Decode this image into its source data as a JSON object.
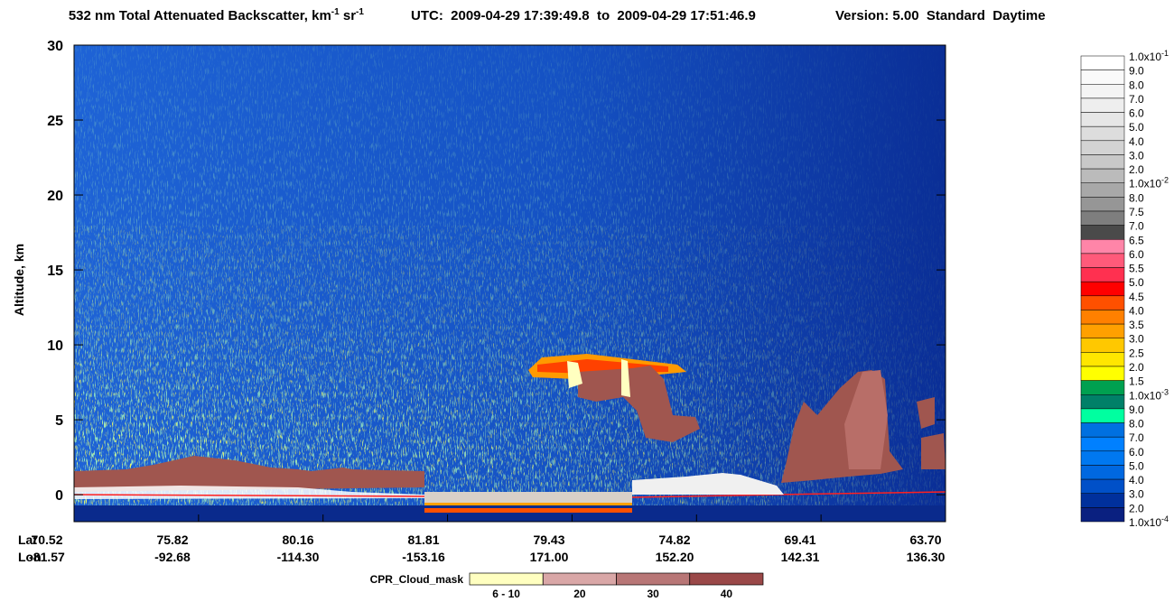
{
  "chart_data": {
    "type": "curtain",
    "title_parts": [
      "532 nm Total Attenuated Backscatter, km",
      "-1",
      " sr",
      "-1"
    ],
    "utc": "UTC:  2009-04-29 17:39:49.8  to  2009-04-29 17:51:46.9",
    "version": "Version: 5.00  Standard  Daytime",
    "y_label": "Altitude, km",
    "ylim": [
      -1.8,
      30
    ],
    "yticks": [
      0,
      5,
      10,
      15,
      20,
      25,
      30
    ],
    "lat_label": "Lat",
    "lon_label": "Lon",
    "lat": [
      "70.52",
      "75.82",
      "80.16",
      "81.81",
      "79.43",
      "74.82",
      "69.41",
      "63.70"
    ],
    "lon": [
      "-81.57",
      "-92.68",
      "-114.30",
      "-153.16",
      "171.00",
      "152.20",
      "142.31",
      "136.30"
    ],
    "colorbar": {
      "labels": [
        {
          "text": "1.0x10",
          "sup": "-1"
        },
        "9.0",
        "8.0",
        "7.0",
        "6.0",
        "5.0",
        "4.0",
        "3.0",
        "2.0",
        {
          "text": "1.0x10",
          "sup": "-2"
        },
        "8.0",
        "7.5",
        "7.0",
        "6.5",
        "6.0",
        "5.5",
        "5.0",
        "4.5",
        "4.0",
        "3.5",
        "3.0",
        "2.5",
        "2.0",
        "1.5",
        {
          "text": "1.0x10",
          "sup": "-3"
        },
        "9.0",
        "8.0",
        "7.0",
        "6.0",
        "5.0",
        "4.0",
        "3.0",
        "2.0",
        {
          "text": "1.0x10",
          "sup": "-4"
        }
      ],
      "colors": [
        "#ffffff",
        "#fafafa",
        "#f4f4f4",
        "#eeeeee",
        "#e6e6e6",
        "#dddddd",
        "#d3d3d3",
        "#c8c8c8",
        "#bbbbbb",
        "#a8a8a8",
        "#969696",
        "#7e7e7e",
        "#4a4a4a",
        "#ff85a8",
        "#ff5a7a",
        "#ff3050",
        "#ff0000",
        "#ff5000",
        "#ff8000",
        "#ffa000",
        "#ffc800",
        "#ffe600",
        "#ffff00",
        "#00a050",
        "#008068",
        "#00ffa0",
        "#0070e0",
        "#0080ff",
        "#0078f0",
        "#0068e0",
        "#0050c8",
        "#00309c",
        "#0a2080"
      ]
    },
    "cpr": {
      "label": "CPR_Cloud_mask",
      "categories": [
        "6 - 10",
        "20",
        "30",
        "40"
      ],
      "colors": [
        "#ffffc0",
        "#d9a7a7",
        "#b87676",
        "#9a4848"
      ]
    }
  }
}
